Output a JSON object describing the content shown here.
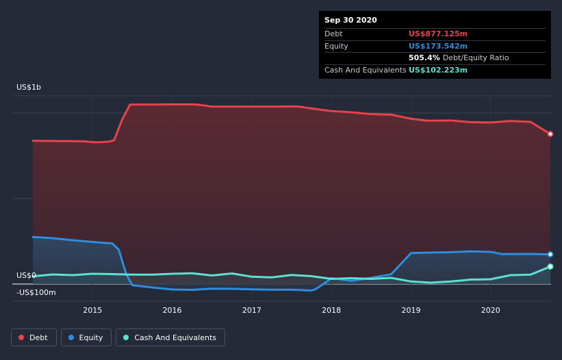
{
  "chart_data": {
    "type": "area",
    "title": "",
    "y_unit": "US$ m",
    "ylim": [
      -100,
      1100
    ],
    "y_tick_labels": [
      {
        "label": "US$1b",
        "value": 1100
      },
      {
        "label": "US$0",
        "value": 0
      },
      {
        "label": "-US$100m",
        "value": -100
      }
    ],
    "x_range": [
      2014.25,
      2020.75
    ],
    "x_ticks": [
      {
        "value": 2015,
        "label": "2015"
      },
      {
        "value": 2016,
        "label": "2016"
      },
      {
        "value": 2017,
        "label": "2017"
      },
      {
        "value": 2018,
        "label": "2018"
      },
      {
        "value": 2019,
        "label": "2019"
      },
      {
        "value": 2020,
        "label": "2020"
      }
    ],
    "series": [
      {
        "name": "Debt",
        "color": "#e8434d",
        "fill": "#5a2c36",
        "points": [
          [
            2014.25,
            837
          ],
          [
            2014.5,
            836
          ],
          [
            2014.75,
            835
          ],
          [
            2014.9,
            834
          ],
          [
            2015.0,
            829
          ],
          [
            2015.1,
            829
          ],
          [
            2015.2,
            832
          ],
          [
            2015.27,
            840
          ],
          [
            2015.37,
            960
          ],
          [
            2015.47,
            1049
          ],
          [
            2015.75,
            1049
          ],
          [
            2016.0,
            1050
          ],
          [
            2016.25,
            1050
          ],
          [
            2016.35,
            1047
          ],
          [
            2016.5,
            1037
          ],
          [
            2016.75,
            1037
          ],
          [
            2017.0,
            1037
          ],
          [
            2017.25,
            1037
          ],
          [
            2017.5,
            1038
          ],
          [
            2017.6,
            1037
          ],
          [
            2017.75,
            1026
          ],
          [
            2018.0,
            1011
          ],
          [
            2018.25,
            1004
          ],
          [
            2018.5,
            993
          ],
          [
            2018.75,
            990
          ],
          [
            2019.0,
            966
          ],
          [
            2019.2,
            955
          ],
          [
            2019.35,
            955
          ],
          [
            2019.5,
            956
          ],
          [
            2019.75,
            946
          ],
          [
            2020.0,
            944
          ],
          [
            2020.25,
            953
          ],
          [
            2020.5,
            948
          ],
          [
            2020.75,
            877
          ]
        ]
      },
      {
        "name": "Equity",
        "color": "#2d8ee0",
        "fill": "#2e4258",
        "points": [
          [
            2014.25,
            275
          ],
          [
            2014.5,
            268
          ],
          [
            2014.75,
            256
          ],
          [
            2015.0,
            246
          ],
          [
            2015.25,
            237
          ],
          [
            2015.33,
            200
          ],
          [
            2015.42,
            60
          ],
          [
            2015.5,
            -7
          ],
          [
            2015.75,
            -20
          ],
          [
            2016.0,
            -32
          ],
          [
            2016.25,
            -34
          ],
          [
            2016.5,
            -27
          ],
          [
            2016.75,
            -28
          ],
          [
            2017.0,
            -31
          ],
          [
            2017.25,
            -33
          ],
          [
            2017.5,
            -33
          ],
          [
            2017.75,
            -38
          ],
          [
            2017.8,
            -30
          ],
          [
            2017.9,
            0
          ],
          [
            2018.0,
            35
          ],
          [
            2018.25,
            18
          ],
          [
            2018.5,
            37
          ],
          [
            2018.75,
            57
          ],
          [
            2018.83,
            97
          ],
          [
            2019.0,
            181
          ],
          [
            2019.25,
            184
          ],
          [
            2019.5,
            186
          ],
          [
            2019.75,
            191
          ],
          [
            2020.0,
            188
          ],
          [
            2020.15,
            175
          ],
          [
            2020.5,
            176
          ],
          [
            2020.75,
            173.5
          ]
        ]
      },
      {
        "name": "Cash And Equivalents",
        "color": "#5ce1d2",
        "fill": "#2a3e4a",
        "points": [
          [
            2014.25,
            45
          ],
          [
            2014.5,
            56
          ],
          [
            2014.75,
            52
          ],
          [
            2015.0,
            60
          ],
          [
            2015.25,
            58
          ],
          [
            2015.5,
            55
          ],
          [
            2015.75,
            55
          ],
          [
            2016.0,
            60
          ],
          [
            2016.25,
            63
          ],
          [
            2016.5,
            50
          ],
          [
            2016.75,
            62
          ],
          [
            2017.0,
            43
          ],
          [
            2017.25,
            39
          ],
          [
            2017.5,
            53
          ],
          [
            2017.75,
            46
          ],
          [
            2018.0,
            30
          ],
          [
            2018.25,
            34
          ],
          [
            2018.5,
            30
          ],
          [
            2018.75,
            36
          ],
          [
            2019.0,
            15
          ],
          [
            2019.25,
            8
          ],
          [
            2019.5,
            15
          ],
          [
            2019.75,
            26
          ],
          [
            2020.0,
            28
          ],
          [
            2020.25,
            52
          ],
          [
            2020.5,
            55
          ],
          [
            2020.75,
            102
          ]
        ]
      }
    ],
    "legend_position": "bottom-left",
    "grid": true
  },
  "tooltip": {
    "date": "Sep 30 2020",
    "rows": [
      {
        "label": "Debt",
        "value": "US$877.125m",
        "color": "#e8434d"
      },
      {
        "label": "Equity",
        "value": "US$173.542m",
        "color": "#2d8ee0"
      },
      {
        "label": "",
        "value": "505.4%",
        "sub": "Debt/Equity Ratio",
        "color": "#ffffff"
      },
      {
        "label": "Cash And Equivalents",
        "value": "US$102.223m",
        "color": "#5ce1d2"
      }
    ]
  },
  "legend": [
    {
      "label": "Debt",
      "color": "#e8434d"
    },
    {
      "label": "Equity",
      "color": "#2d8ee0"
    },
    {
      "label": "Cash And Equivalents",
      "color": "#5ce1d2"
    }
  ]
}
